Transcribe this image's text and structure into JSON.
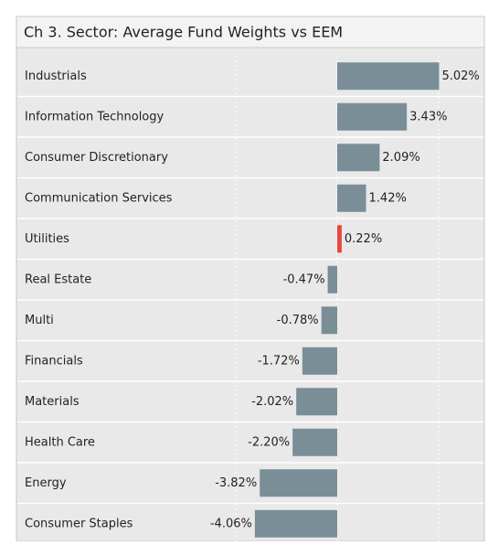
{
  "chart_data": {
    "type": "bar",
    "orientation": "horizontal",
    "title": "Ch 3. Sector:  Average Fund Weights vs EEM",
    "categories": [
      "Industrials",
      "Information Technology",
      "Consumer Discretionary",
      "Communication Services",
      "Utilities",
      "Real Estate",
      "Multi",
      "Financials",
      "Materials",
      "Health Care",
      "Energy",
      "Consumer Staples"
    ],
    "values": [
      5.02,
      3.43,
      2.09,
      1.42,
      0.22,
      -0.47,
      -0.78,
      -1.72,
      -2.02,
      -2.2,
      -3.82,
      -4.06
    ],
    "value_labels": [
      "5.02%",
      "3.43%",
      "2.09%",
      "1.42%",
      "0.22%",
      "-0.47%",
      "-0.78%",
      "-1.72%",
      "-2.02%",
      "-2.20%",
      "-3.82%",
      "-4.06%"
    ],
    "colors": [
      "#7a8e98",
      "#7a8e98",
      "#7a8e98",
      "#7a8e98",
      "#e8473d",
      "#7a8e98",
      "#7a8e98",
      "#7a8e98",
      "#7a8e98",
      "#7a8e98",
      "#7a8e98",
      "#7a8e98"
    ],
    "xlim": [
      -5,
      5
    ],
    "grid": true
  }
}
